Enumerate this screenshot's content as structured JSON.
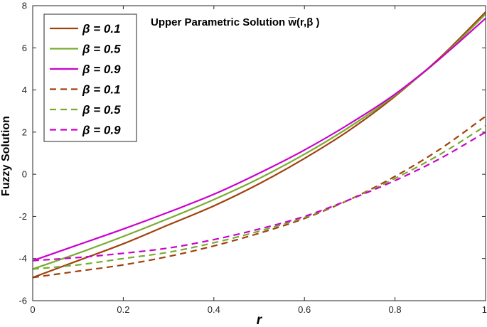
{
  "chart_data": {
    "type": "line",
    "title": "Upper Parametric Solution w̅(r,β )",
    "xlabel": "r",
    "ylabel": "Fuzzy  Solution",
    "xlim": [
      0,
      1
    ],
    "ylim": [
      -6,
      8
    ],
    "xticks": [
      "0",
      "0.2",
      "0.4",
      "0.6",
      "0.8",
      "1"
    ],
    "yticks": [
      "-6",
      "-4",
      "-2",
      "0",
      "2",
      "4",
      "6",
      "8"
    ],
    "grid": false,
    "legend_position": "top-left",
    "colors": {
      "beta_0_1": "#A0410D",
      "beta_0_5": "#77AC30",
      "beta_0_9": "#CC00CC"
    },
    "x": [
      0,
      0.1,
      0.2,
      0.3,
      0.4,
      0.5,
      0.6,
      0.7,
      0.8,
      0.9,
      1.0
    ],
    "series": [
      {
        "name": "β = 0.1",
        "style": "solid",
        "color": "#A0410D",
        "values": [
          -4.9,
          -4.1,
          -3.3,
          -2.4,
          -1.5,
          -0.45,
          0.75,
          2.1,
          3.7,
          5.55,
          7.7
        ]
      },
      {
        "name": "β = 0.5",
        "style": "solid",
        "color": "#77AC30",
        "values": [
          -4.5,
          -3.75,
          -2.95,
          -2.1,
          -1.2,
          -0.2,
          0.95,
          2.25,
          3.75,
          5.5,
          7.6
        ]
      },
      {
        "name": "β = 0.9",
        "style": "solid",
        "color": "#CC00CC",
        "values": [
          -4.1,
          -3.35,
          -2.6,
          -1.8,
          -0.95,
          0.05,
          1.15,
          2.4,
          3.8,
          5.5,
          7.4
        ]
      },
      {
        "name": "β = 0.1",
        "style": "dashed",
        "color": "#A0410D",
        "values": [
          -4.9,
          -4.6,
          -4.3,
          -3.9,
          -3.4,
          -2.8,
          -2.1,
          -1.2,
          -0.1,
          1.2,
          2.75
        ]
      },
      {
        "name": "β = 0.5",
        "style": "dashed",
        "color": "#77AC30",
        "values": [
          -4.5,
          -4.3,
          -4.0,
          -3.7,
          -3.25,
          -2.7,
          -2.05,
          -1.2,
          -0.2,
          0.95,
          2.3
        ]
      },
      {
        "name": "β = 0.9",
        "style": "dashed",
        "color": "#CC00CC",
        "values": [
          -4.1,
          -3.95,
          -3.75,
          -3.5,
          -3.1,
          -2.6,
          -2.0,
          -1.2,
          -0.3,
          0.75,
          2.0
        ]
      }
    ]
  }
}
